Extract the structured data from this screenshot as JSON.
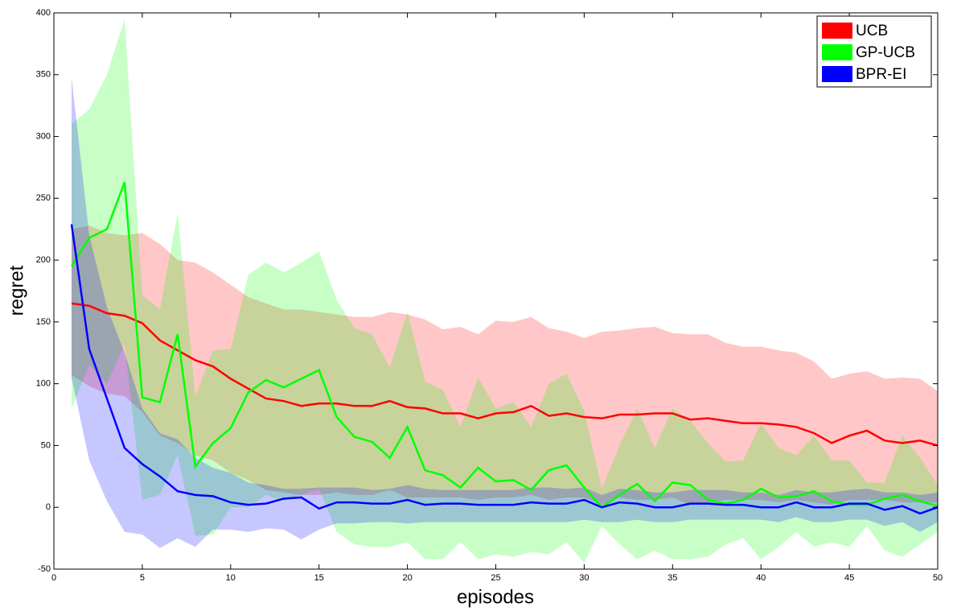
{
  "chart_data": {
    "type": "line",
    "xlabel": "episodes",
    "ylabel": "regret",
    "xlim": [
      0,
      50
    ],
    "ylim": [
      -50,
      400
    ],
    "xticks": [
      0,
      5,
      10,
      15,
      20,
      25,
      30,
      35,
      40,
      45,
      50
    ],
    "yticks": [
      -50,
      0,
      50,
      100,
      150,
      200,
      250,
      300,
      350,
      400
    ],
    "legend": "upper right",
    "band_opacity": 0.22,
    "x": [
      1,
      2,
      3,
      4,
      5,
      6,
      7,
      8,
      9,
      10,
      11,
      12,
      13,
      14,
      15,
      16,
      17,
      18,
      19,
      20,
      21,
      22,
      23,
      24,
      25,
      26,
      27,
      28,
      29,
      30,
      31,
      32,
      33,
      34,
      35,
      36,
      37,
      38,
      39,
      40,
      41,
      42,
      43,
      44,
      45,
      46,
      47,
      48,
      49,
      50
    ],
    "series": [
      {
        "name": "UCB",
        "color": "#ff0000",
        "values": [
          165,
          163,
          157,
          155,
          149,
          135,
          127,
          119,
          114,
          104,
          96,
          88,
          86,
          82,
          84,
          84,
          82,
          82,
          86,
          81,
          80,
          76,
          76,
          72,
          76,
          77,
          82,
          74,
          76,
          73,
          72,
          75,
          75,
          76,
          76,
          71,
          72,
          70,
          68,
          68,
          67,
          65,
          60,
          52,
          58,
          62,
          54,
          52,
          54,
          50
        ],
        "upper": [
          225,
          228,
          222,
          220,
          222,
          213,
          200,
          198,
          190,
          180,
          170,
          165,
          160,
          160,
          158,
          156,
          154,
          154,
          158,
          156,
          152,
          144,
          146,
          140,
          151,
          150,
          154,
          145,
          142,
          137,
          142,
          143,
          145,
          146,
          141,
          140,
          140,
          133,
          130,
          130,
          127,
          125,
          118,
          104,
          108,
          110,
          104,
          105,
          104,
          94
        ],
        "lower": [
          107,
          98,
          92,
          90,
          77,
          58,
          52,
          42,
          38,
          28,
          22,
          14,
          12,
          10,
          10,
          12,
          10,
          10,
          14,
          8,
          8,
          8,
          8,
          6,
          8,
          8,
          10,
          6,
          8,
          8,
          2,
          8,
          6,
          6,
          8,
          2,
          4,
          6,
          6,
          6,
          4,
          6,
          4,
          2,
          6,
          6,
          6,
          4,
          4,
          4
        ]
      },
      {
        "name": "GP-UCB",
        "color": "#00ff00",
        "values": [
          195,
          218,
          225,
          263,
          89,
          85,
          140,
          33,
          52,
          64,
          93,
          103,
          97,
          104,
          111,
          73,
          57,
          53,
          40,
          65,
          30,
          26,
          16,
          32,
          21,
          22,
          14,
          30,
          34,
          16,
          0,
          10,
          19,
          5,
          20,
          18,
          6,
          3,
          6,
          15,
          8,
          9,
          13,
          5,
          2,
          2,
          7,
          10,
          5,
          1
        ],
        "upper": [
          310,
          322,
          350,
          395,
          172,
          160,
          238,
          90,
          127,
          128,
          188,
          198,
          190,
          198,
          207,
          168,
          145,
          140,
          113,
          158,
          102,
          95,
          65,
          105,
          80,
          85,
          65,
          100,
          108,
          78,
          15,
          50,
          80,
          48,
          80,
          70,
          52,
          37,
          38,
          68,
          48,
          42,
          58,
          38,
          38,
          20,
          20,
          58,
          40,
          18
        ],
        "lower": [
          80,
          115,
          100,
          132,
          6,
          10,
          42,
          -23,
          -22,
          0,
          0,
          10,
          5,
          10,
          15,
          -20,
          -30,
          -32,
          -32,
          -28,
          -42,
          -42,
          -28,
          -42,
          -38,
          -40,
          -36,
          -38,
          -28,
          -45,
          -15,
          -30,
          -42,
          -35,
          -42,
          -42,
          -40,
          -30,
          -25,
          -42,
          -32,
          -20,
          -32,
          -28,
          -32,
          -15,
          -35,
          -40,
          -30,
          -20
        ]
      },
      {
        "name": "BPR-EI",
        "color": "#0000ff",
        "values": [
          229,
          128,
          88,
          48,
          35,
          25,
          13,
          10,
          9,
          4,
          2,
          3,
          7,
          8,
          -1,
          4,
          4,
          3,
          3,
          6,
          2,
          3,
          3,
          2,
          2,
          2,
          4,
          3,
          3,
          6,
          0,
          4,
          3,
          0,
          0,
          3,
          3,
          2,
          2,
          0,
          0,
          4,
          0,
          0,
          3,
          3,
          -2,
          1,
          -5,
          0
        ],
        "upper": [
          348,
          220,
          162,
          125,
          80,
          60,
          55,
          40,
          32,
          28,
          20,
          18,
          15,
          15,
          16,
          16,
          16,
          14,
          15,
          18,
          15,
          14,
          14,
          14,
          14,
          14,
          16,
          16,
          15,
          16,
          10,
          15,
          14,
          12,
          12,
          14,
          14,
          14,
          12,
          12,
          10,
          14,
          12,
          12,
          14,
          15,
          12,
          12,
          10,
          12
        ],
        "lower": [
          105,
          38,
          5,
          -20,
          -22,
          -33,
          -25,
          -32,
          -18,
          -18,
          -20,
          -17,
          -18,
          -26,
          -18,
          -13,
          -13,
          -12,
          -12,
          -13,
          -12,
          -12,
          -12,
          -12,
          -12,
          -12,
          -12,
          -12,
          -12,
          -10,
          -12,
          -12,
          -10,
          -12,
          -12,
          -10,
          -10,
          -10,
          -10,
          -10,
          -12,
          -8,
          -12,
          -12,
          -10,
          -10,
          -15,
          -12,
          -20,
          -12
        ]
      }
    ]
  }
}
